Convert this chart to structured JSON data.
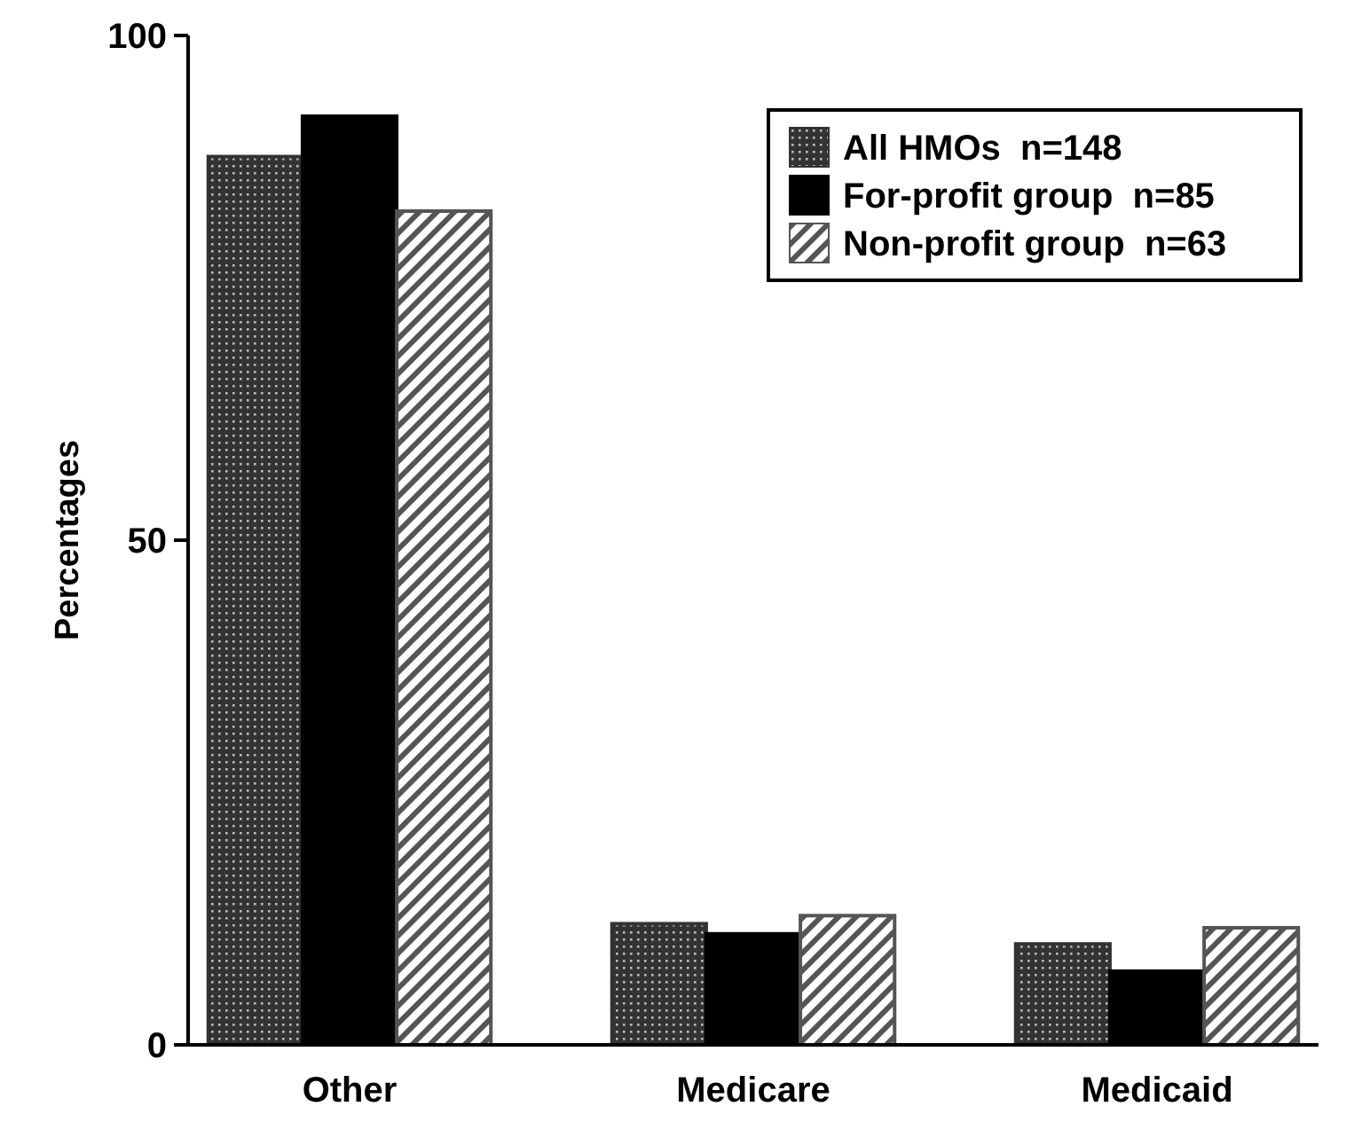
{
  "chart_data": {
    "type": "bar",
    "ylabel": "Percentages",
    "categories": [
      "Other",
      "Medicare",
      "Medicaid"
    ],
    "series": [
      {
        "name": "All HMOs  n=148",
        "color": "#333333",
        "values": [
          88,
          12,
          10
        ]
      },
      {
        "name": "For-profit group  n=85",
        "color": "#000000",
        "values": [
          92,
          11,
          7.3
        ]
      },
      {
        "name": "Non-profit group  n=63",
        "color": "#555555",
        "values": [
          82.6,
          12.8,
          11.6
        ]
      }
    ],
    "ylim": [
      0,
      100
    ],
    "yticks": [
      0,
      50,
      100
    ],
    "grid": false,
    "legend": "top right"
  }
}
